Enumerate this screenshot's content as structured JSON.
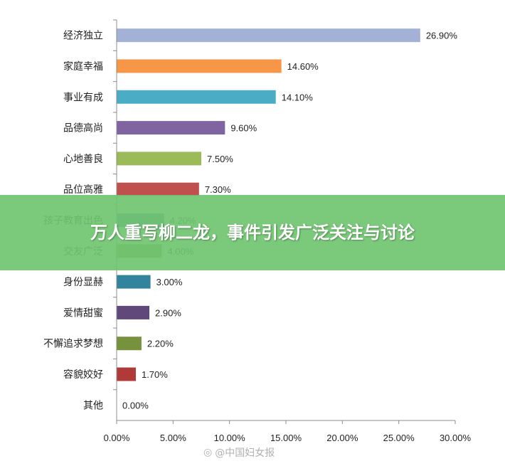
{
  "headline": "万人重写柳二龙，事件引发广泛关注与讨论",
  "watermark": {
    "icon": "weibo-icon",
    "text": "@中国妇女报"
  },
  "chart_data": {
    "type": "bar",
    "orientation": "horizontal",
    "categories": [
      "经济独立",
      "家庭幸福",
      "事业有成",
      "品德高尚",
      "心地善良",
      "品位高雅",
      "孩子教育出色",
      "交友广泛",
      "身份显赫",
      "爱情甜蜜",
      "不懈追求梦想",
      "容貌姣好",
      "其他"
    ],
    "values": [
      26.9,
      14.6,
      14.1,
      9.6,
      7.5,
      7.3,
      4.2,
      4.0,
      3.0,
      2.9,
      2.2,
      1.7,
      0.0
    ],
    "value_labels": [
      "26.90%",
      "14.60%",
      "14.10%",
      "9.60%",
      "7.50%",
      "7.30%",
      "4.20%",
      "4.00%",
      "3.00%",
      "2.90%",
      "2.20%",
      "1.70%",
      "0.00%"
    ],
    "colors": [
      "#A3B1D6",
      "#F79646",
      "#4BACC6",
      "#8064A2",
      "#9BBB59",
      "#C0504D",
      "#4F81BD",
      "#77A33F",
      "#31849B",
      "#60497A",
      "#76923C",
      "#B03A38",
      "#A3B1D6"
    ],
    "xticks": [
      "0.00%",
      "5.00%",
      "10.00%",
      "15.00%",
      "20.00%",
      "25.00%",
      "30.00%"
    ],
    "xlim": [
      0,
      30
    ],
    "grid": false,
    "legend": "none"
  }
}
